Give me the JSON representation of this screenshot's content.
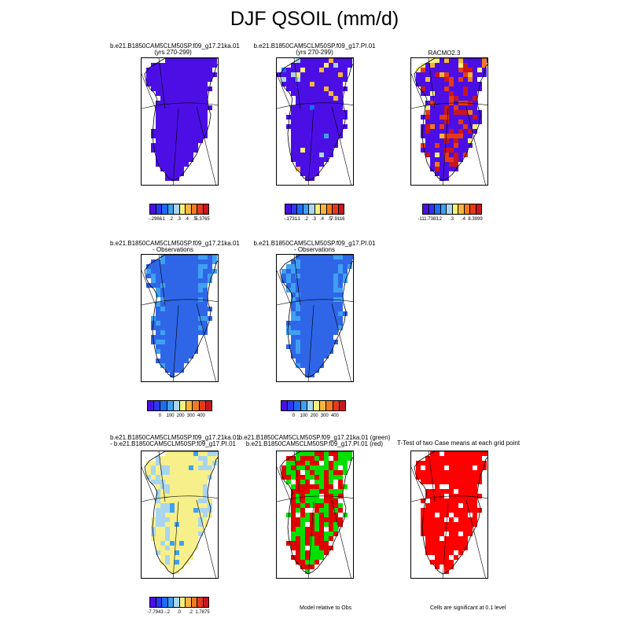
{
  "figure": {
    "title": "DJF QSOIL (mm/d)"
  },
  "chart_data": [
    {
      "type": "heatmap",
      "panel": "top-left",
      "title_line1": "b.e21.B1850CAM5CLM50SP.f09_g17.21ka.01",
      "title_line2": "(yrs 270-299)",
      "colorbar": {
        "colors": [
          "#4b0fe6",
          "#2c38f0",
          "#1e6cf5",
          "#3fa0f2",
          "#a9d6ee",
          "#f7f07c",
          "#f7b53d",
          "#f37b1f",
          "#e53a1a",
          "#c8161c"
        ],
        "tick_labels": [
          "-.2966",
          ".1",
          ".2",
          ".3",
          ".4",
          ".5",
          "5.3765"
        ]
      },
      "dominant_fill": "#4b0fe6",
      "accent_cells": []
    },
    {
      "type": "heatmap",
      "panel": "top-middle",
      "title_line1": "b.e21.B1850CAM5CLM50SP.f09_g17.PI.01",
      "title_line2": "(yrs 270-299)",
      "colorbar": {
        "colors": [
          "#4b0fe6",
          "#2c38f0",
          "#1e6cf5",
          "#3fa0f2",
          "#a9d6ee",
          "#f7f07c",
          "#f7b53d",
          "#f37b1f",
          "#e53a1a",
          "#c8161c"
        ],
        "tick_labels": [
          "-.1731",
          ".1",
          ".2",
          ".3",
          ".4",
          ".5",
          "7.9116"
        ]
      },
      "dominant_fill": "#4b0fe6",
      "accent_cells": [
        "#1e6cf5",
        "#3fa0f2",
        "#a9d6ee",
        "#f7f07c",
        "#f7b53d"
      ]
    },
    {
      "type": "heatmap",
      "panel": "top-right",
      "title_line1": "RACMO2.3",
      "title_line2": "",
      "colorbar": {
        "colors": [
          "#4b0fe6",
          "#2c38f0",
          "#1e6cf5",
          "#3fa0f2",
          "#a9d6ee",
          "#f7f07c",
          "#f7b53d",
          "#f37b1f",
          "#e53a1a",
          "#c8161c"
        ],
        "tick_labels": [
          "-111.7383",
          ".2",
          ".3",
          ".4",
          "8.3999"
        ]
      },
      "dominant_fill": "#4b0fe6",
      "accent_cells": [
        "#e53a1a",
        "#c8161c",
        "#f7b53d",
        "#f37b1f",
        "#f7f07c"
      ]
    },
    {
      "type": "heatmap",
      "panel": "middle-left",
      "title_line1": "b.e21.B1850CAM5CLM50SP.f09_g17.21ka.01",
      "title_line2": "- Observations",
      "colorbar": {
        "colors": [
          "#4b0fe6",
          "#2c38f0",
          "#1e6cf5",
          "#3fa0f2",
          "#a9d6ee",
          "#f7f07c",
          "#f7b53d",
          "#f37b1f",
          "#e53a1a",
          "#c8161c"
        ],
        "tick_labels": [
          "0",
          "100",
          "200",
          "300",
          "400"
        ]
      },
      "dominant_fill": "#2f66e8",
      "accent_cells": [
        "#3fa0f2"
      ]
    },
    {
      "type": "heatmap",
      "panel": "middle-middle",
      "title_line1": "b.e21.B1850CAM5CLM50SP.f09_g17.PI.01",
      "title_line2": "- Observations",
      "colorbar": {
        "colors": [
          "#4b0fe6",
          "#2c38f0",
          "#1e6cf5",
          "#3fa0f2",
          "#a9d6ee",
          "#f7f07c",
          "#f7b53d",
          "#f37b1f",
          "#e53a1a",
          "#c8161c"
        ],
        "tick_labels": [
          "0",
          "100",
          "200",
          "300",
          "400"
        ]
      },
      "dominant_fill": "#2f66e8",
      "accent_cells": [
        "#3fa0f2"
      ]
    },
    {
      "type": "heatmap",
      "panel": "bottom-left",
      "title_line1": "b.e21.B1850CAM5CLM50SP.f09_g17.21ka.01",
      "title_line2": "- b.e21.B1850CAM5CLM50SP.f09_g17.PI.01",
      "colorbar": {
        "colors": [
          "#4b0fe6",
          "#2c38f0",
          "#1e6cf5",
          "#3fa0f2",
          "#a9d6ee",
          "#f7f07c",
          "#f7b53d",
          "#f37b1f",
          "#e53a1a",
          "#c8161c"
        ],
        "tick_labels": [
          "-7.7943",
          "-.2",
          ".0",
          ".2",
          "1.7875"
        ]
      },
      "dominant_fill": "#f7f08a",
      "accent_cells": [
        "#a9d6ee",
        "#3fa0f2",
        "#2c38f0"
      ]
    },
    {
      "type": "heatmap",
      "panel": "bottom-middle",
      "title_line1": "b.e21.B1850CAM5CLM50SP.f09_g17.21ka.01 (green)",
      "title_line2": "b.e21.B1850CAM5CLM50SP.f09_g17.PI.01 (red)",
      "note": "Model relative to Obs",
      "dominant_fill": "#00e000",
      "accent_cells": [
        "#e00000",
        "#ffffff"
      ]
    },
    {
      "type": "heatmap",
      "panel": "bottom-right",
      "title_line1": "T-Test of two Case means at each grid point",
      "title_line2": "",
      "note": "Cells are significant at 0.1 level",
      "dominant_fill": "#ff0000",
      "accent_cells": [
        "#ffffff"
      ]
    }
  ]
}
